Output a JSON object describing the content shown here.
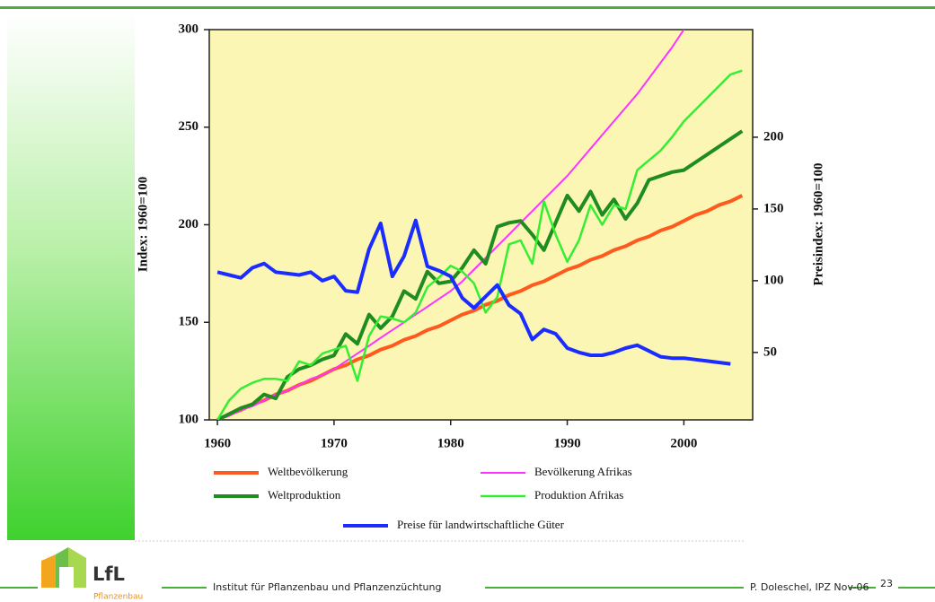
{
  "chart_data": {
    "type": "line",
    "ylabel": "Index: 1960=100",
    "y2label": "Preisindex: 1960=100",
    "x": [
      1960,
      1961,
      1962,
      1963,
      1964,
      1965,
      1966,
      1967,
      1968,
      1969,
      1970,
      1971,
      1972,
      1973,
      1974,
      1975,
      1976,
      1977,
      1978,
      1979,
      1980,
      1981,
      1982,
      1983,
      1984,
      1985,
      1986,
      1987,
      1988,
      1989,
      1990,
      1991,
      1992,
      1993,
      1994,
      1995,
      1996,
      1997,
      1998,
      1999,
      2000,
      2001,
      2002,
      2003,
      2004,
      2005
    ],
    "xlim": [
      1959.3,
      2005.9
    ],
    "xticks": [
      1960,
      1970,
      1980,
      1990,
      2000
    ],
    "ylim": [
      100,
      300
    ],
    "yticks": [
      100,
      150,
      200,
      250,
      300
    ],
    "y2lim": [
      3,
      275
    ],
    "y2ticks": [
      50,
      100,
      150,
      200
    ],
    "background": "#fbf6b4",
    "series": [
      {
        "name": "Weltbevölkerung",
        "color": "#ff5a1e",
        "width": 4,
        "values": [
          100,
          103,
          105,
          108,
          110,
          113,
          115,
          118,
          120,
          123,
          126,
          128,
          131,
          133,
          136,
          138,
          141,
          143,
          146,
          148,
          151,
          154,
          156,
          159,
          161,
          164,
          166,
          169,
          171,
          174,
          177,
          179,
          182,
          184,
          187,
          189,
          192,
          194,
          197,
          199,
          202,
          205,
          207,
          210,
          212,
          215
        ]
      },
      {
        "name": "Bevölkerung Afrikas",
        "color": "#ff33ff",
        "width": 2,
        "values": [
          100,
          102,
          105,
          107,
          110,
          113,
          115,
          118,
          121,
          123,
          126,
          130,
          134,
          138,
          142,
          146,
          150,
          154,
          158,
          162,
          166,
          171,
          177,
          183,
          189,
          195,
          201,
          207,
          213,
          219,
          225,
          232,
          239,
          246,
          253,
          260,
          267,
          275,
          283,
          291,
          300,
          null,
          null,
          null,
          null,
          null
        ]
      },
      {
        "name": "Weltproduktion",
        "color": "#1e8c1e",
        "width": 4,
        "values": [
          100,
          103,
          106,
          108,
          113,
          111,
          122,
          126,
          128,
          131,
          133,
          144,
          139,
          154,
          147,
          153,
          166,
          162,
          176,
          170,
          171,
          178,
          187,
          180,
          199,
          201,
          202,
          195,
          187,
          201,
          215,
          207,
          217,
          205,
          213,
          203,
          211,
          223,
          225,
          227,
          228,
          232,
          236,
          240,
          244,
          248
        ]
      },
      {
        "name": "Produktion Afrikas",
        "color": "#33ee33",
        "width": 2.5,
        "values": [
          100,
          110,
          116,
          119,
          121,
          121,
          120,
          130,
          128,
          134,
          136,
          138,
          120,
          143,
          153,
          152,
          150,
          155,
          168,
          173,
          179,
          176,
          170,
          155,
          163,
          190,
          192,
          180,
          212,
          195,
          181,
          192,
          210,
          200,
          210,
          208,
          228,
          233,
          238,
          245,
          253,
          259,
          265,
          271,
          277,
          279
        ]
      },
      {
        "name": "Preise für landwirtschaftliche Güter",
        "color": "#1a2cff",
        "width": 4,
        "axis": "y2",
        "values": [
          106,
          104,
          102,
          109,
          112,
          106,
          105,
          104,
          106,
          100,
          103,
          93,
          92,
          122,
          140,
          103,
          117,
          142,
          110,
          107,
          103,
          88,
          81,
          89,
          97,
          83,
          77,
          59,
          66,
          63,
          53,
          50,
          48,
          48,
          50,
          53,
          55,
          51,
          47,
          46,
          46,
          45,
          44,
          43,
          42,
          null
        ]
      }
    ]
  },
  "footer": {
    "logo": "LfL",
    "logo_sub": "Pflanzenbau",
    "institute": "Institut für Pflanzenbau und Pflanzenzüchtung",
    "author": "P. Doleschel, IPZ Nov-06",
    "page": "23"
  }
}
